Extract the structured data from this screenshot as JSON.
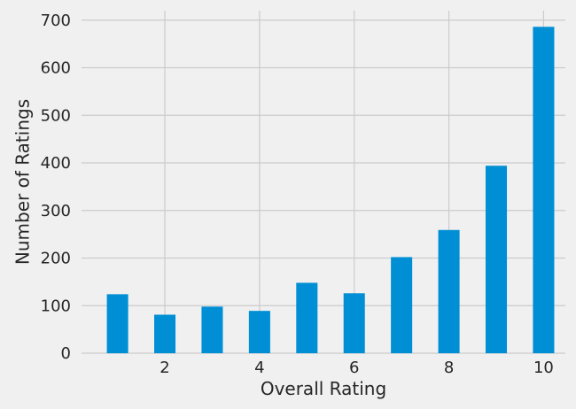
{
  "chart_data": {
    "type": "bar",
    "title": "",
    "xlabel": "Overall Rating",
    "ylabel": "Number of Ratings",
    "categories": [
      1,
      2,
      3,
      4,
      5,
      6,
      7,
      8,
      9,
      10
    ],
    "values": [
      124,
      81,
      98,
      89,
      148,
      126,
      202,
      259,
      394,
      686
    ],
    "xlim": [
      0.24,
      10.46
    ],
    "ylim": [
      0,
      720
    ],
    "xticks": [
      2,
      4,
      6,
      8,
      10
    ],
    "yticks": [
      0,
      100,
      200,
      300,
      400,
      500,
      600,
      700
    ],
    "grid": true,
    "legend": "none",
    "bar_color": "#008fd5",
    "background_color": "#f0f0f0",
    "grid_color": "#cbcbcb"
  }
}
